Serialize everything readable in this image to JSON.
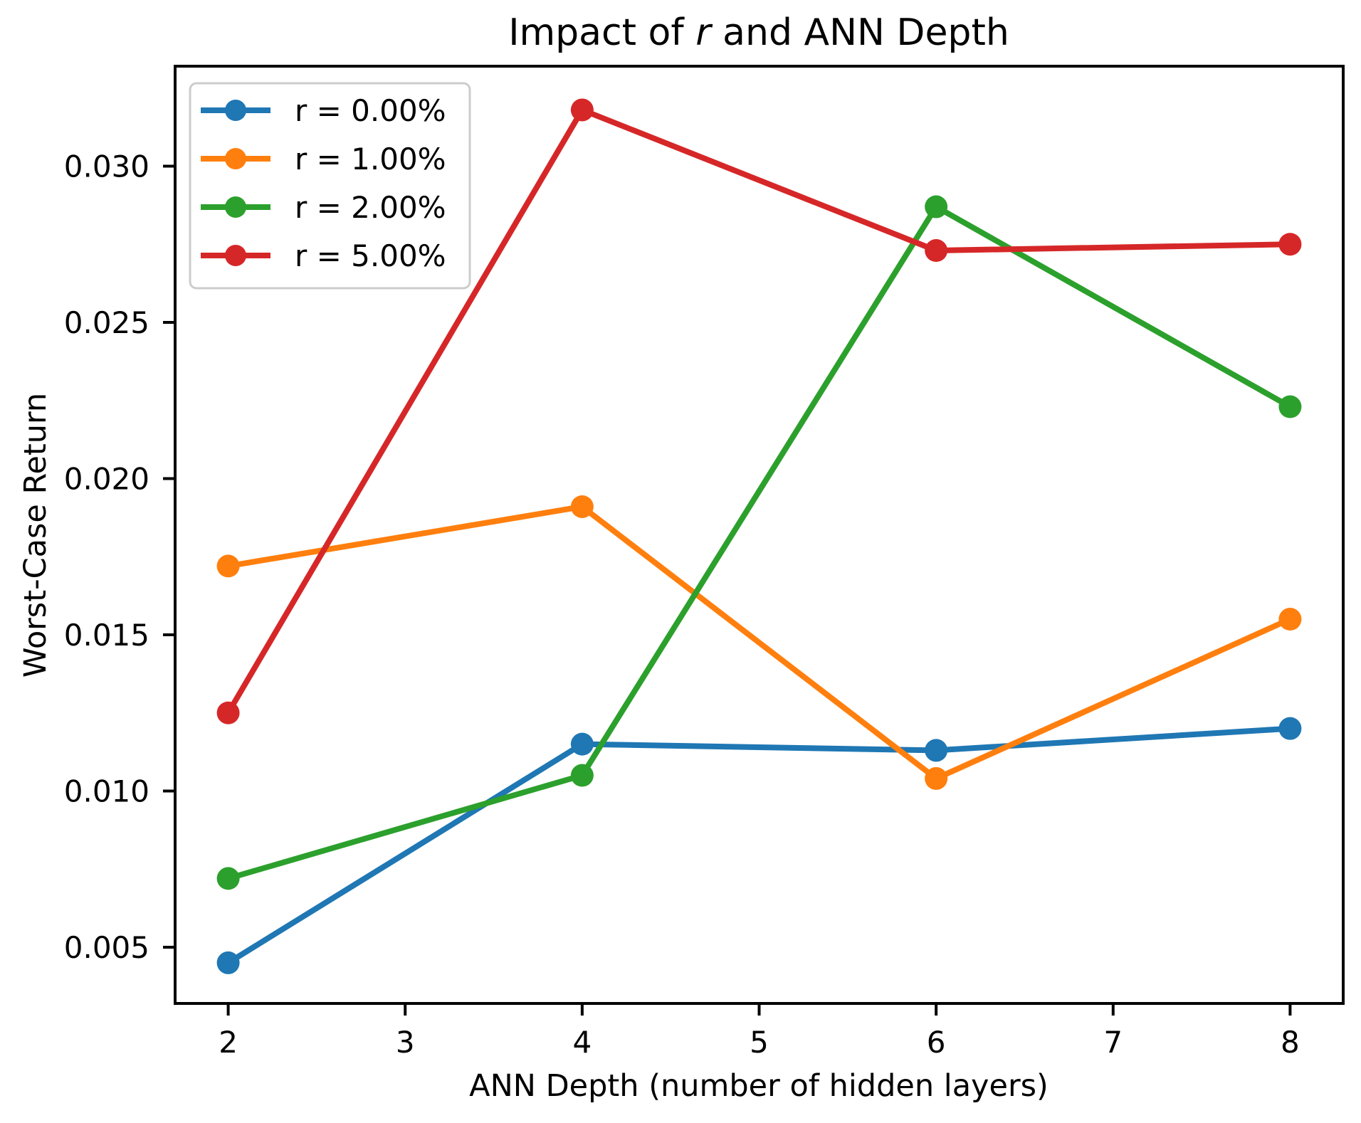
{
  "title": {
    "full": "Impact of r and ANN Depth",
    "parts": [
      {
        "text": "Impact of ",
        "italic": false
      },
      {
        "text": "r",
        "italic": true
      },
      {
        "text": " and ANN Depth",
        "italic": false
      }
    ]
  },
  "chart_data": {
    "type": "line",
    "x": [
      2,
      4,
      6,
      8
    ],
    "series": [
      {
        "name": "r = 0.00%",
        "color": "#1f77b4",
        "values": [
          0.0045,
          0.0115,
          0.0113,
          0.012
        ]
      },
      {
        "name": "r = 1.00%",
        "color": "#ff7f0e",
        "values": [
          0.0172,
          0.0191,
          0.0104,
          0.0155
        ]
      },
      {
        "name": "r = 2.00%",
        "color": "#2ca02c",
        "values": [
          0.0072,
          0.0105,
          0.0287,
          0.0223
        ]
      },
      {
        "name": "r = 5.00%",
        "color": "#d62728",
        "values": [
          0.0125,
          0.0318,
          0.0273,
          0.0275
        ]
      }
    ],
    "title": "Impact of r and ANN Depth",
    "xlabel": "ANN Depth (number of hidden layers)",
    "ylabel": "Worst-Case Return",
    "xticks": [
      "2",
      "3",
      "4",
      "5",
      "6",
      "7",
      "8"
    ],
    "yticks": [
      "0.005",
      "0.010",
      "0.015",
      "0.020",
      "0.025",
      "0.030"
    ],
    "xlim": [
      1.7,
      8.3
    ],
    "ylim": [
      0.0032,
      0.0332
    ],
    "grid": false,
    "marker": "o",
    "legend_position": "upper left",
    "legend_entries": [
      "r = 0.00%",
      "r = 1.00%",
      "r = 2.00%",
      "r = 5.00%"
    ],
    "axis_color": "#000000",
    "legend_border_color": "#cccccc"
  }
}
